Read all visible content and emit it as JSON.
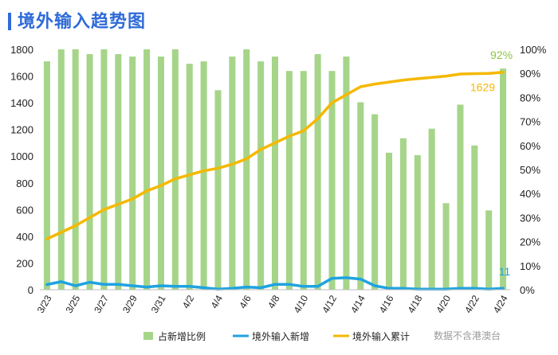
{
  "chart_data": {
    "type": "bar+line",
    "title": "境外输入趋势图",
    "categories": [
      "3/23",
      "3/24",
      "3/25",
      "3/26",
      "3/27",
      "3/28",
      "3/29",
      "3/30",
      "3/31",
      "4/1",
      "4/2",
      "4/3",
      "4/4",
      "4/5",
      "4/6",
      "4/7",
      "4/8",
      "4/9",
      "4/10",
      "4/11",
      "4/12",
      "4/13",
      "4/14",
      "4/15",
      "4/16",
      "4/17",
      "4/18",
      "4/19",
      "4/20",
      "4/21",
      "4/22",
      "4/23",
      "4/24"
    ],
    "x_tick_labels": [
      "3/23",
      "3/25",
      "3/27",
      "3/29",
      "3/31",
      "4/2",
      "4/4",
      "4/6",
      "4/8",
      "4/10",
      "4/12",
      "4/14",
      "4/16",
      "4/18",
      "4/20",
      "4/22",
      "4/24"
    ],
    "left_axis": {
      "ylim": [
        0,
        1800
      ],
      "ticks": [
        "0",
        "200",
        "400",
        "600",
        "800",
        "1000",
        "1200",
        "1400",
        "1600",
        "1800"
      ]
    },
    "right_axis": {
      "ylim": [
        0,
        100
      ],
      "ticks": [
        "0%",
        "10%",
        "20%",
        "30%",
        "40%",
        "50%",
        "60%",
        "70%",
        "80%",
        "90%",
        "100%"
      ]
    },
    "series": [
      {
        "name": "占新增比例",
        "type": "bar",
        "axis": "right",
        "color": "#a6d58a",
        "values": [
          95,
          100,
          100,
          98,
          100,
          98,
          97,
          100,
          97,
          100,
          94,
          95,
          83,
          97,
          100,
          95,
          97,
          91,
          91,
          98,
          91,
          97,
          78,
          73,
          57,
          63,
          56,
          67,
          36,
          77,
          60,
          33,
          92
        ]
      },
      {
        "name": "境外输入新增",
        "type": "line",
        "axis": "left",
        "color": "#1fa3e0",
        "values": [
          39,
          60,
          30,
          56,
          40,
          40,
          30,
          20,
          30,
          25,
          25,
          15,
          5,
          10,
          20,
          15,
          40,
          40,
          25,
          25,
          85,
          90,
          80,
          30,
          10,
          10,
          5,
          5,
          5,
          10,
          10,
          5,
          11
        ]
      },
      {
        "name": "境外输入累计",
        "type": "line",
        "axis": "left",
        "color": "#f5b800",
        "values": [
          380,
          430,
          480,
          540,
          600,
          640,
          680,
          740,
          780,
          830,
          860,
          890,
          910,
          940,
          980,
          1050,
          1100,
          1150,
          1190,
          1280,
          1400,
          1460,
          1520,
          1540,
          1555,
          1570,
          1580,
          1590,
          1600,
          1615,
          1618,
          1620,
          1629
        ]
      }
    ],
    "annotations": [
      {
        "text": "92%",
        "series": "占新增比例",
        "color": "#8cc63f"
      },
      {
        "text": "1629",
        "series": "境外输入累计",
        "color": "#f5b800"
      },
      {
        "text": "11",
        "series": "境外输入新增",
        "color": "#1fa3e0"
      }
    ],
    "legend": {
      "position": "bottom",
      "entries": [
        "占新增比例",
        "境外输入新增",
        "境外输入累计"
      ]
    },
    "source_note": "数据不含港澳台",
    "grid": false
  }
}
